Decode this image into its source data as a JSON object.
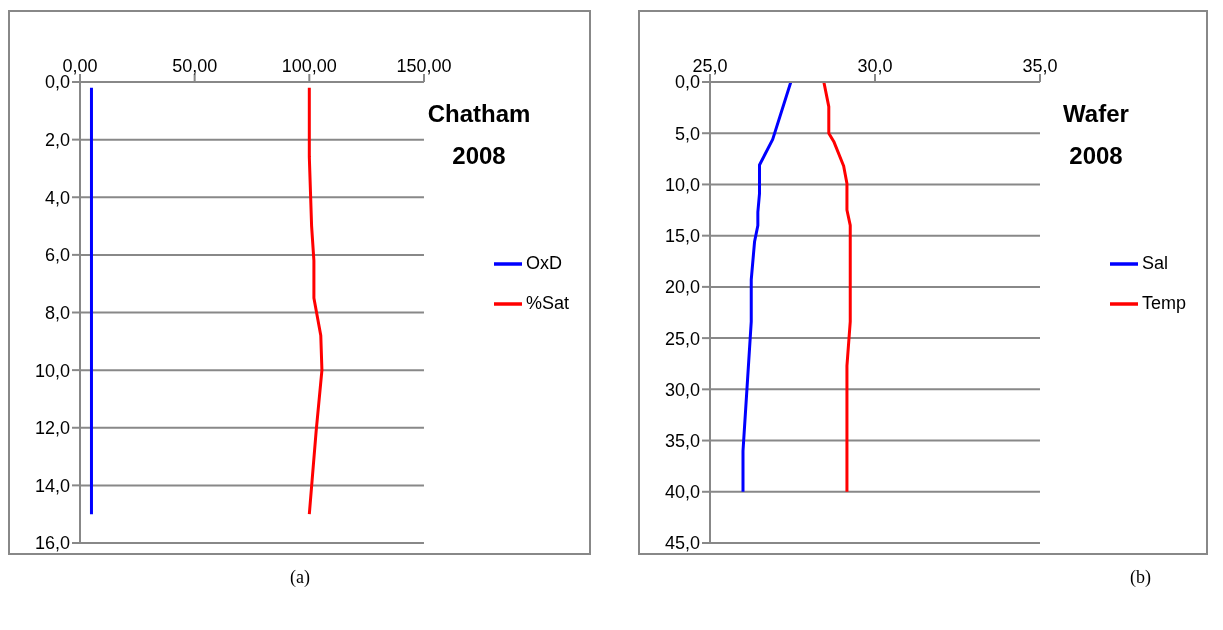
{
  "chart_data": [
    {
      "type": "line",
      "title": "Chatham 2008",
      "legend": "right",
      "grid": "y",
      "marker": "none",
      "line_style": "solid",
      "xlim": [
        0,
        150
      ],
      "xticks": [
        {
          "value": 0,
          "label": "0,00"
        },
        {
          "value": 50,
          "label": "50,00"
        },
        {
          "value": 100,
          "label": "100,00"
        },
        {
          "value": 150,
          "label": "150,00"
        }
      ],
      "ylim": [
        16,
        0
      ],
      "yticks": [
        {
          "value": 0,
          "label": "0,0"
        },
        {
          "value": 2,
          "label": "2,0"
        },
        {
          "value": 4,
          "label": "4,0"
        },
        {
          "value": 6,
          "label": "6,0"
        },
        {
          "value": 8,
          "label": "8,0"
        },
        {
          "value": 10,
          "label": "10,0"
        },
        {
          "value": 12,
          "label": "12,0"
        },
        {
          "value": 14,
          "label": "14,0"
        },
        {
          "value": 16,
          "label": "16,0"
        }
      ],
      "annotations": [
        "(a)"
      ],
      "series": [
        {
          "name": "OxD",
          "color": "#0000ff",
          "x": [
            5,
            5
          ],
          "values": [
            0.2,
            15
          ]
        },
        {
          "name": "%Sat",
          "color": "#ff0000",
          "x": [
            100,
            100,
            101,
            102,
            102,
            105,
            105.5,
            103,
            100
          ],
          "values": [
            0.2,
            2.6,
            5,
            6.2,
            7.5,
            8.8,
            10,
            12.1,
            15
          ]
        }
      ]
    },
    {
      "type": "line",
      "title": "Wafer 2008",
      "legend": "right",
      "grid": "y",
      "marker": "none",
      "line_style": "solid",
      "xlim": [
        25,
        35
      ],
      "xticks": [
        {
          "value": 25,
          "label": "25,0"
        },
        {
          "value": 30,
          "label": "30,0"
        },
        {
          "value": 35,
          "label": "35,0"
        }
      ],
      "ylim": [
        45,
        0
      ],
      "yticks": [
        {
          "value": 0,
          "label": "0,0"
        },
        {
          "value": 5,
          "label": "5,0"
        },
        {
          "value": 10,
          "label": "10,0"
        },
        {
          "value": 15,
          "label": "15,0"
        },
        {
          "value": 20,
          "label": "20,0"
        },
        {
          "value": 25,
          "label": "25,0"
        },
        {
          "value": 30,
          "label": "30,0"
        },
        {
          "value": 35,
          "label": "35,0"
        },
        {
          "value": 40,
          "label": "40,0"
        },
        {
          "value": 45,
          "label": "45,0"
        }
      ],
      "annotations": [
        "(b)"
      ],
      "series": [
        {
          "name": "Sal",
          "color": "#0000ff",
          "x": [
            27.45,
            26.9,
            26.5,
            26.5,
            26.45,
            26.45,
            26.35,
            26.25,
            26.25,
            26.0,
            26.0
          ],
          "values": [
            0,
            5.6,
            8.1,
            10.9,
            12.7,
            14,
            15.6,
            19.3,
            23.4,
            36,
            40
          ]
        },
        {
          "name": "Temp",
          "color": "#ff0000",
          "x": [
            28.45,
            28.6,
            28.6,
            28.75,
            29.05,
            29.15,
            29.15,
            29.25,
            29.25,
            29.15,
            29.15
          ],
          "values": [
            0,
            2.4,
            5,
            5.8,
            8.2,
            9.9,
            12.5,
            14,
            23.4,
            27.7,
            40
          ]
        }
      ]
    }
  ]
}
